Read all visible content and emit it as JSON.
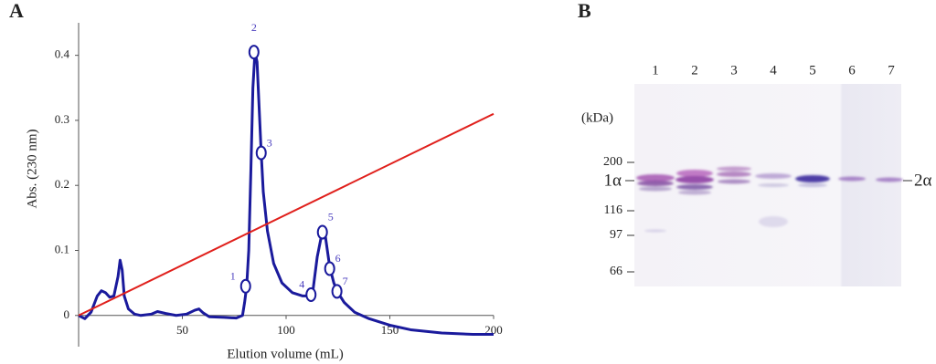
{
  "chart_data": {
    "type": "line",
    "panel": "A",
    "ylabel": "Abs. (230 nm)",
    "xlabel": "Elution volume (mL)",
    "xlim": [
      0,
      200
    ],
    "xticks": [
      50,
      100,
      150,
      200
    ],
    "ylim": [
      -0.048,
      0.45
    ],
    "yticks": [
      0,
      0.1,
      0.2,
      0.3,
      0.4
    ],
    "series": [
      {
        "color": "#1a1a9c",
        "x": [
          0,
          3,
          6,
          9,
          11,
          13,
          15,
          17,
          19,
          20,
          21,
          22,
          24,
          27,
          30,
          35,
          38,
          42,
          47,
          52,
          56,
          58,
          60,
          63,
          70,
          76,
          79,
          80,
          81,
          82,
          83,
          84,
          85,
          86,
          87,
          88,
          89,
          91,
          94,
          98,
          103,
          108,
          111,
          113,
          115,
          117,
          118,
          119,
          121,
          123,
          125,
          128,
          133,
          140,
          150,
          160,
          175,
          190,
          200
        ],
        "values": [
          0,
          -0.005,
          0.005,
          0.03,
          0.038,
          0.035,
          0.028,
          0.03,
          0.06,
          0.085,
          0.07,
          0.03,
          0.01,
          0.002,
          0,
          0.002,
          0.006,
          0.003,
          0,
          0.002,
          0.008,
          0.01,
          0.004,
          -0.002,
          -0.003,
          -0.004,
          0,
          0.02,
          0.045,
          0.1,
          0.22,
          0.35,
          0.405,
          0.39,
          0.32,
          0.25,
          0.19,
          0.13,
          0.08,
          0.05,
          0.035,
          0.03,
          0.03,
          0.04,
          0.09,
          0.122,
          0.128,
          0.12,
          0.075,
          0.05,
          0.035,
          0.02,
          0.005,
          -0.005,
          -0.015,
          -0.022,
          -0.027,
          -0.029,
          -0.029
        ]
      },
      {
        "color": "#e0201c",
        "x": [
          0,
          200
        ],
        "values": [
          0,
          0.31
        ]
      }
    ],
    "annotation_color": "#4b3fbf",
    "annotations": [
      {
        "text": "1",
        "x": 80.5,
        "y": 0.045
      },
      {
        "text": "2",
        "x": 84.5,
        "y": 0.405
      },
      {
        "text": "3",
        "x": 88,
        "y": 0.25
      },
      {
        "text": "4",
        "x": 112,
        "y": 0.032
      },
      {
        "text": "5",
        "x": 117.5,
        "y": 0.128
      },
      {
        "text": "6",
        "x": 121,
        "y": 0.072
      },
      {
        "text": "7",
        "x": 124.5,
        "y": 0.037
      }
    ]
  },
  "gel": {
    "panel": "B",
    "lanes": [
      "1",
      "2",
      "3",
      "4",
      "5",
      "6",
      "7"
    ],
    "unit": "(kDa)",
    "markers": [
      "200",
      "116",
      "97",
      "66"
    ],
    "left_band": "1α",
    "right_band": "2α"
  }
}
